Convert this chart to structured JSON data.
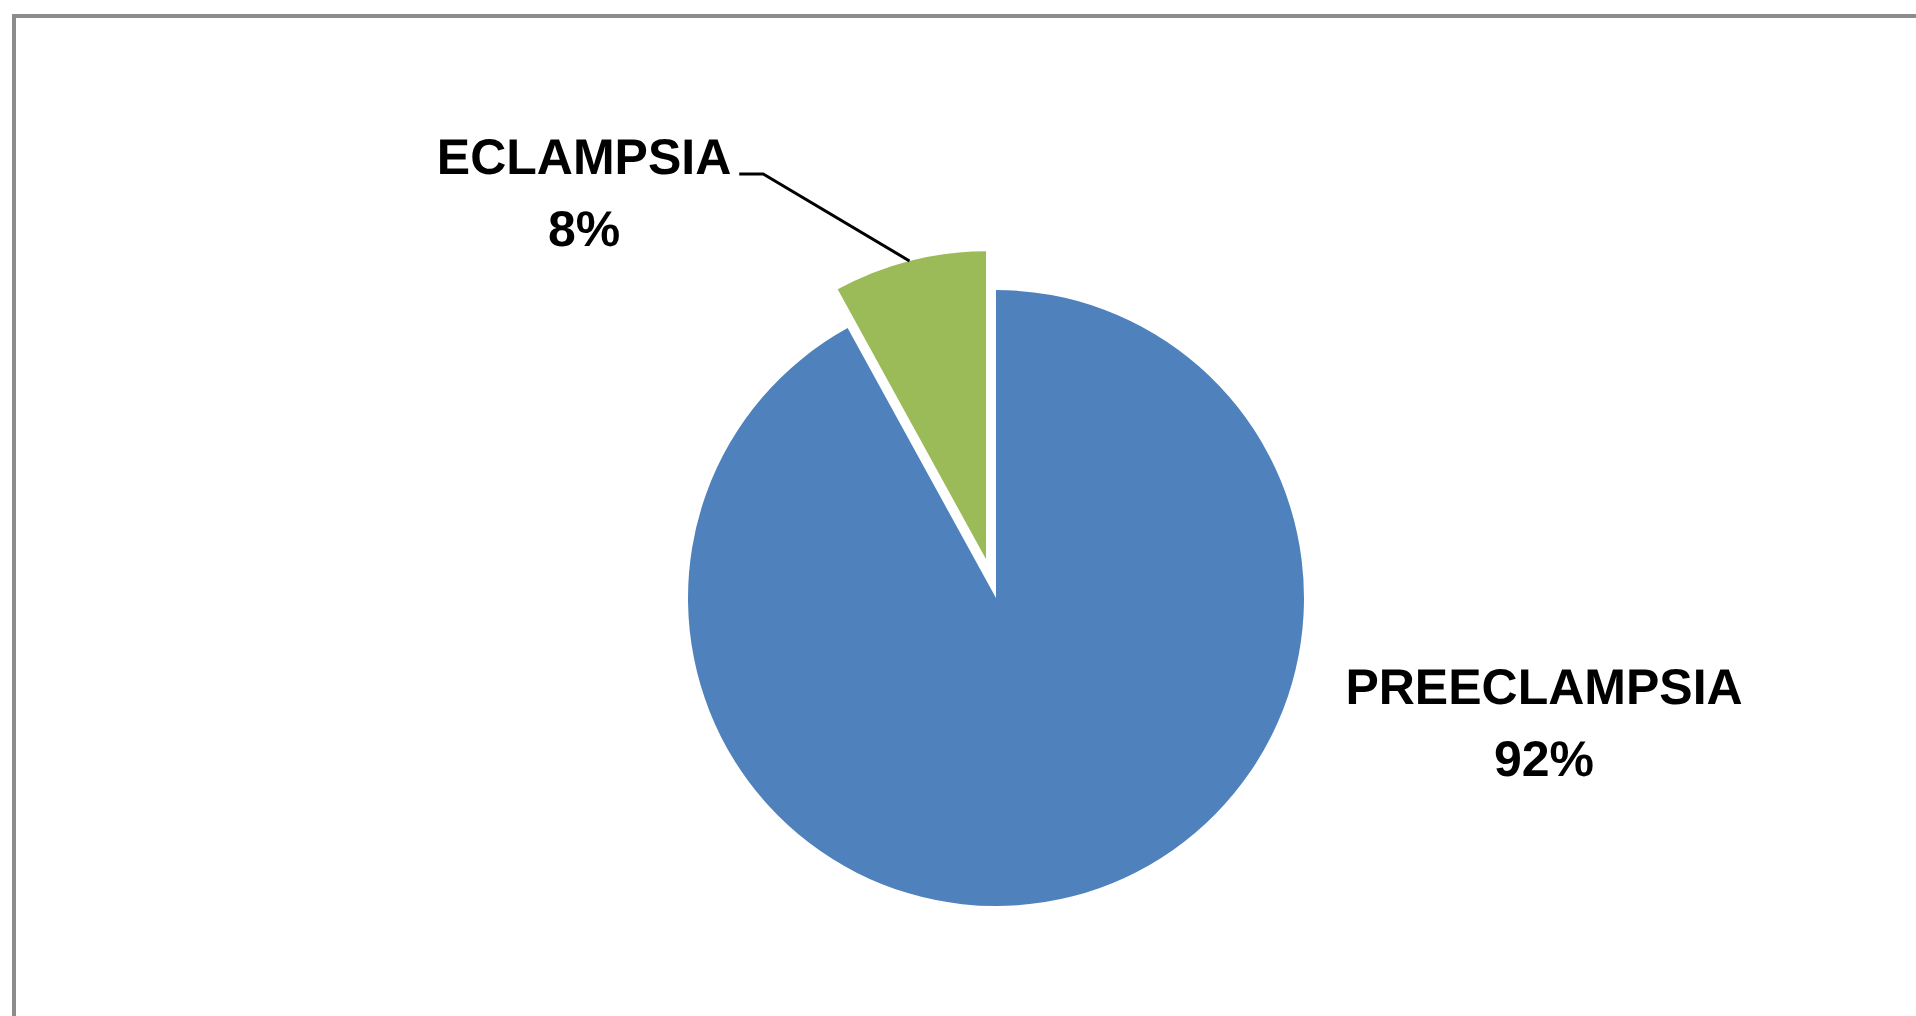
{
  "chart_data": {
    "type": "pie",
    "categories": [
      "PREECLAMPSIA",
      "ECLAMPSIA"
    ],
    "values": [
      92,
      8
    ],
    "colors": [
      "#4f81bd",
      "#9bbb59"
    ],
    "value_labels": [
      "92%",
      "8%"
    ]
  }
}
